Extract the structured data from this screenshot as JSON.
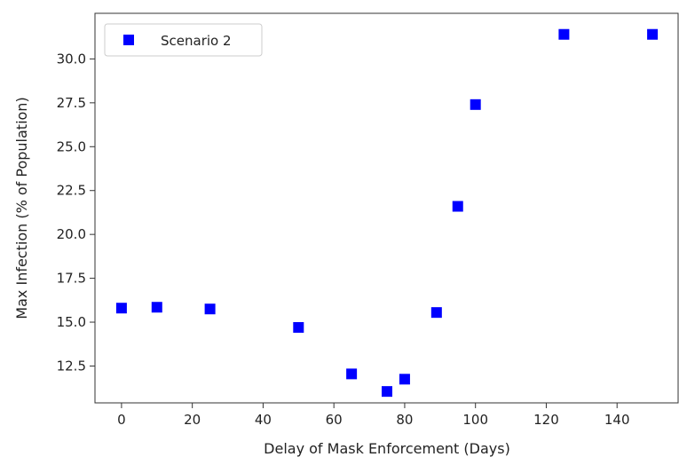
{
  "chart_data": {
    "type": "scatter",
    "title": "",
    "xlabel": "Delay of Mask Enforcement (Days)",
    "ylabel": "Max Infection (% of Population)",
    "xlim": [
      -7.5,
      157.5
    ],
    "ylim": [
      10.4,
      32.6
    ],
    "xticks": [
      0,
      20,
      40,
      60,
      80,
      100,
      120,
      140
    ],
    "xtick_labels": [
      "0",
      "20",
      "40",
      "60",
      "80",
      "100",
      "120",
      "140"
    ],
    "yticks": [
      12.5,
      15.0,
      17.5,
      20.0,
      22.5,
      25.0,
      27.5,
      30.0
    ],
    "ytick_labels": [
      "12.5",
      "15.0",
      "17.5",
      "20.0",
      "22.5",
      "25.0",
      "27.5",
      "30.0"
    ],
    "grid": false,
    "legend_position": "top-left",
    "series": [
      {
        "name": "Scenario 2",
        "color": "#0000ff",
        "marker": "square",
        "x": [
          0,
          10,
          25,
          50,
          65,
          75,
          80,
          89,
          95,
          100,
          125,
          150
        ],
        "y": [
          15.8,
          15.85,
          15.75,
          14.7,
          12.05,
          11.05,
          11.75,
          15.55,
          21.6,
          27.4,
          31.4,
          31.4
        ]
      }
    ]
  }
}
